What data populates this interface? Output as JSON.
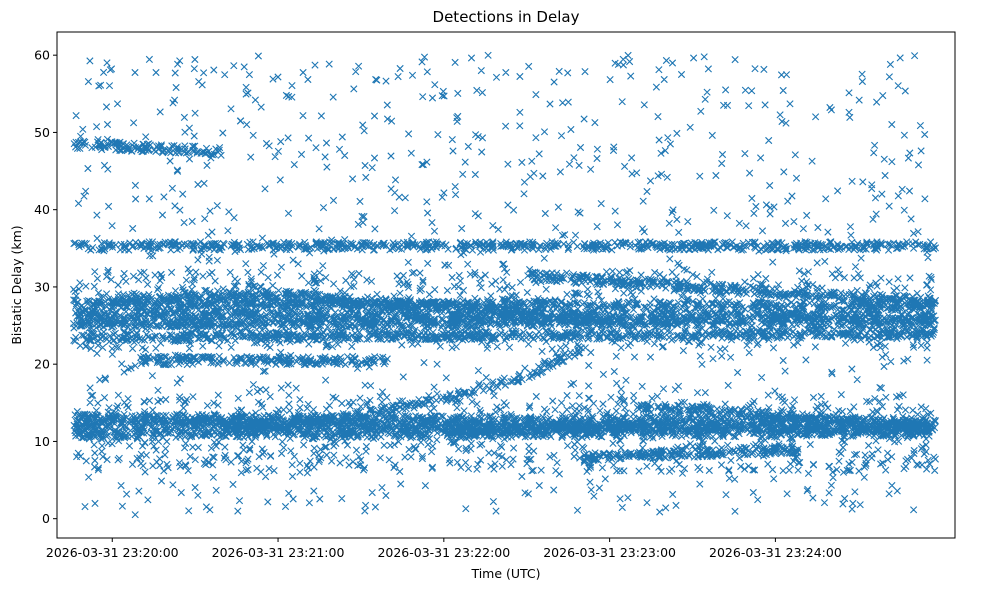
{
  "chart_data": {
    "type": "scatter",
    "title": "Detections in Delay",
    "xlabel": "Time (UTC)",
    "ylabel": "Bistatic Delay (km)",
    "x_ticks": [
      "2026-03-31 23:20:00",
      "2026-03-31 23:21:00",
      "2026-03-31 23:22:00",
      "2026-03-31 23:23:00",
      "2026-03-31 23:24:00"
    ],
    "y_ticks": [
      0,
      10,
      20,
      30,
      40,
      50,
      60
    ],
    "xlim": [
      "2026-03-31 23:19:40",
      "2026-03-31 23:25:05"
    ],
    "ylim": [
      -2.5,
      63
    ],
    "grid": false,
    "marker": "x",
    "color": "#1f77b4",
    "time_range": [
      "2026-03-31 23:19:46",
      "2026-03-31 23:24:58"
    ],
    "tracks": [
      {
        "time": [
          "23:19:46",
          "23:24:58"
        ],
        "delay": [
          35.3,
          35.3
        ]
      },
      {
        "time": [
          "23:19:46",
          "23:24:58"
        ],
        "delay": [
          27.8,
          27.5
        ]
      },
      {
        "time": [
          "23:19:46",
          "23:24:58"
        ],
        "delay": [
          26.5,
          26.0
        ]
      },
      {
        "time": [
          "23:19:46",
          "23:24:58"
        ],
        "delay": [
          25.2,
          25.5
        ]
      },
      {
        "time": [
          "23:19:46",
          "23:24:58"
        ],
        "delay": [
          23.5,
          24.0
        ]
      },
      {
        "time": [
          "23:19:46",
          "23:24:58"
        ],
        "delay": [
          12.2,
          11.8
        ]
      },
      {
        "time": [
          "23:19:46",
          "23:24:58"
        ],
        "delay": [
          11.0,
          11.2
        ]
      },
      {
        "time": [
          "23:19:46",
          "23:24:58"
        ],
        "delay": [
          13.0,
          12.5
        ]
      },
      {
        "time": [
          "23:20:40",
          "23:21:15",
          "23:22:00",
          "23:22:30",
          "23:22:50"
        ],
        "delay": [
          11.5,
          12.5,
          15.5,
          18.5,
          22.0
        ]
      },
      {
        "time": [
          "23:20:00",
          "23:21:00",
          "23:22:00",
          "23:23:00"
        ],
        "delay": [
          28.5,
          29.0,
          27.5,
          25.5
        ]
      },
      {
        "time": [
          "23:22:30",
          "23:24:58"
        ],
        "delay": [
          31.5,
          28.0
        ]
      },
      {
        "time": [
          "23:19:46",
          "23:20:40"
        ],
        "delay": [
          48.5,
          47.5
        ]
      },
      {
        "time": [
          "23:20:10",
          "23:21:40"
        ],
        "delay": [
          20.5,
          20.5
        ]
      },
      {
        "time": [
          "23:22:00",
          "23:23:10"
        ],
        "delay": [
          11.5,
          12.0
        ]
      },
      {
        "time": [
          "23:23:10",
          "23:24:58"
        ],
        "delay": [
          14.5,
          12.0
        ]
      },
      {
        "time": [
          "23:22:50",
          "23:24:10"
        ],
        "delay": [
          8.0,
          9.0
        ]
      }
    ],
    "clutter_range": [
      0.5,
      60
    ]
  }
}
